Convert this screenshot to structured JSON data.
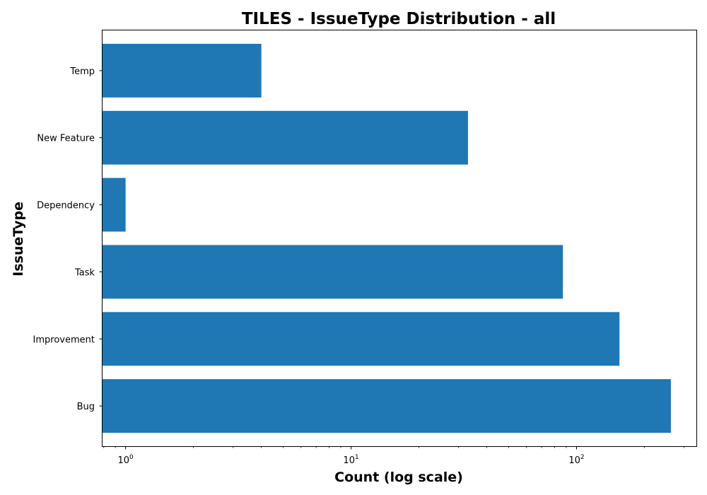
{
  "chart_data": {
    "type": "bar",
    "orientation": "horizontal",
    "title": "TILES - IssueType Distribution - all",
    "xlabel": "Count (log scale)",
    "ylabel": "IssueType",
    "x_scale": "log",
    "xlim": [
      0.79,
      340
    ],
    "x_major_ticks": [
      {
        "value": 1,
        "base": "10",
        "exp": "0"
      },
      {
        "value": 10,
        "base": "10",
        "exp": "1"
      },
      {
        "value": 100,
        "base": "10",
        "exp": "2"
      }
    ],
    "categories": [
      "Bug",
      "Improvement",
      "Task",
      "Dependency",
      "New Feature",
      "Temp"
    ],
    "values": [
      262,
      155,
      87,
      1,
      33,
      4
    ],
    "bar_color": "#1f77b4",
    "grid": false,
    "legend": "none"
  }
}
